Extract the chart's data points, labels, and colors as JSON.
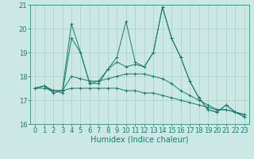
{
  "title": "",
  "xlabel": "Humidex (Indice chaleur)",
  "ylabel": "",
  "background_color": "#cce8e4",
  "grid_color": "#aacfcb",
  "line_color": "#1a7a6e",
  "spine_color": "#1a7a6e",
  "xlim": [
    -0.5,
    23.5
  ],
  "ylim": [
    16,
    21
  ],
  "yticks": [
    16,
    17,
    18,
    19,
    20,
    21
  ],
  "xticks": [
    0,
    1,
    2,
    3,
    4,
    5,
    6,
    7,
    8,
    9,
    10,
    11,
    12,
    13,
    14,
    15,
    16,
    17,
    18,
    19,
    20,
    21,
    22,
    23
  ],
  "series1_x": [
    0,
    1,
    2,
    3,
    4,
    5,
    6,
    7,
    8,
    9,
    10,
    11,
    12,
    13,
    14,
    15,
    16,
    17,
    18,
    19,
    20,
    21,
    22,
    23
  ],
  "series1_y": [
    17.5,
    17.6,
    17.3,
    17.4,
    20.2,
    19.0,
    17.7,
    17.7,
    18.3,
    18.8,
    20.3,
    18.6,
    18.4,
    19.0,
    20.9,
    19.6,
    18.8,
    17.8,
    17.1,
    16.6,
    16.5,
    16.8,
    16.5,
    16.3
  ],
  "series2_x": [
    0,
    1,
    2,
    3,
    4,
    5,
    6,
    7,
    8,
    9,
    10,
    11,
    12,
    13,
    14,
    15,
    16,
    17,
    18,
    19,
    20,
    21,
    22,
    23
  ],
  "series2_y": [
    17.5,
    17.6,
    17.4,
    17.3,
    19.6,
    19.0,
    17.7,
    17.8,
    18.3,
    18.6,
    18.4,
    18.5,
    18.4,
    19.0,
    20.9,
    19.6,
    18.8,
    17.8,
    17.1,
    16.6,
    16.5,
    16.8,
    16.5,
    16.3
  ],
  "series3_x": [
    0,
    1,
    2,
    3,
    4,
    5,
    6,
    7,
    8,
    9,
    10,
    11,
    12,
    13,
    14,
    15,
    16,
    17,
    18,
    19,
    20,
    21,
    22,
    23
  ],
  "series3_y": [
    17.5,
    17.6,
    17.4,
    17.4,
    18.0,
    17.9,
    17.8,
    17.8,
    17.9,
    18.0,
    18.1,
    18.1,
    18.1,
    18.0,
    17.9,
    17.7,
    17.4,
    17.2,
    17.0,
    16.8,
    16.6,
    16.6,
    16.5,
    16.4
  ],
  "series4_x": [
    0,
    1,
    2,
    3,
    4,
    5,
    6,
    7,
    8,
    9,
    10,
    11,
    12,
    13,
    14,
    15,
    16,
    17,
    18,
    19,
    20,
    21,
    22,
    23
  ],
  "series4_y": [
    17.5,
    17.5,
    17.4,
    17.4,
    17.5,
    17.5,
    17.5,
    17.5,
    17.5,
    17.5,
    17.4,
    17.4,
    17.3,
    17.3,
    17.2,
    17.1,
    17.0,
    16.9,
    16.8,
    16.7,
    16.6,
    16.6,
    16.5,
    16.4
  ],
  "tick_fontsize": 6,
  "xlabel_fontsize": 7,
  "linewidth": 0.7,
  "markersize": 3
}
